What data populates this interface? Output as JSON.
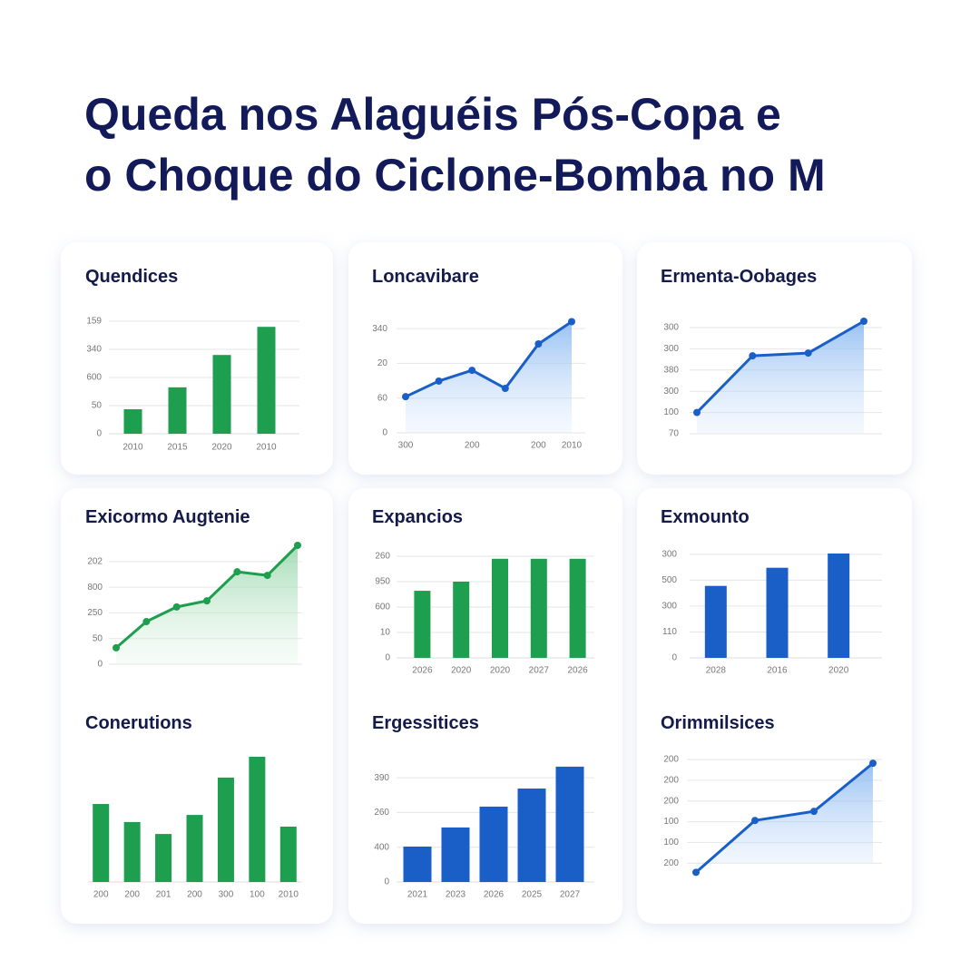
{
  "title": [
    "Queda nos Alaguéis Pós-Copa e",
    "o Choque do Ciclone-Bomba no M"
  ],
  "chart_data": [
    {
      "type": "bar",
      "title": "Quendices",
      "categories": [
        "2010",
        "2015",
        "2020",
        "2010"
      ],
      "values": [
        0.87,
        1.65,
        2.8,
        3.8
      ],
      "color": "#1e9e4f",
      "ylim": [
        0,
        4
      ],
      "yticks": [
        {
          "value": 0,
          "label": "0"
        },
        {
          "value": 1,
          "label": "50"
        },
        {
          "value": 2,
          "label": "600"
        },
        {
          "value": 3,
          "label": "340"
        },
        {
          "value": 4,
          "label": "159"
        }
      ],
      "grid": true
    },
    {
      "type": "line",
      "title": "Loncavibare",
      "categories": [
        "300",
        null,
        "200",
        null,
        "200",
        "2010"
      ],
      "values": [
        1.04,
        1.49,
        1.8,
        1.28,
        2.56,
        3.2
      ],
      "color": "#1a5fc7",
      "area": true,
      "ylim": [
        0,
        3.5
      ],
      "yticks": [
        {
          "value": 0,
          "label": "0"
        },
        {
          "value": 1,
          "label": "60"
        },
        {
          "value": 2,
          "label": "20"
        },
        {
          "value": 3,
          "label": "340"
        }
      ],
      "grid": true
    },
    {
      "type": "line",
      "title": "Ermenta-Oobages",
      "categories": [
        null,
        null,
        null,
        null
      ],
      "values": [
        1.0,
        3.67,
        3.8,
        5.3
      ],
      "color": "#1a5fc7",
      "area": true,
      "ylim": [
        0,
        5.3
      ],
      "yticks": [
        {
          "value": 0,
          "label": "70"
        },
        {
          "value": 1,
          "label": "100"
        },
        {
          "value": 2,
          "label": "300"
        },
        {
          "value": 3,
          "label": "380"
        },
        {
          "value": 4,
          "label": "300"
        },
        {
          "value": 5,
          "label": "300"
        }
      ],
      "grid": true
    },
    {
      "type": "line",
      "title": "Exicormo Augtenie",
      "categories": [
        null,
        null,
        null,
        null,
        null,
        null,
        null
      ],
      "values": [
        0.64,
        1.66,
        2.23,
        2.47,
        3.6,
        3.46,
        4.63
      ],
      "color": "#1e9e4f",
      "area": true,
      "ylim": [
        0,
        4.63
      ],
      "yticks": [
        {
          "value": 0,
          "label": "0"
        },
        {
          "value": 1,
          "label": "50"
        },
        {
          "value": 2,
          "label": "250"
        },
        {
          "value": 3,
          "label": "800"
        },
        {
          "value": 4,
          "label": "202"
        }
      ],
      "grid": true
    },
    {
      "type": "bar",
      "title": "Expancios",
      "categories": [
        "2026",
        "2020",
        "2020",
        "2027",
        "2026"
      ],
      "values": [
        2.64,
        3.0,
        3.9,
        3.9,
        3.9
      ],
      "color": "#1e9e4f",
      "ylim": [
        0,
        4
      ],
      "yticks": [
        {
          "value": 0,
          "label": "0"
        },
        {
          "value": 1,
          "label": "10"
        },
        {
          "value": 2,
          "label": "600"
        },
        {
          "value": 3,
          "label": "950"
        },
        {
          "value": 4,
          "label": "260"
        }
      ],
      "grid": true
    },
    {
      "type": "bar",
      "title": "Exmounto",
      "categories": [
        "2028",
        "2016",
        "2020"
      ],
      "values": [
        2.78,
        3.48,
        4.03
      ],
      "color": "#1a5fc7",
      "ylim": [
        0,
        4.03
      ],
      "yticks": [
        {
          "value": 0,
          "label": "0"
        },
        {
          "value": 1,
          "label": "110"
        },
        {
          "value": 2,
          "label": "300"
        },
        {
          "value": 3,
          "label": "500"
        },
        {
          "value": 4,
          "label": "300"
        }
      ],
      "grid": true
    },
    {
      "type": "bar",
      "title": "Conerutions",
      "categories": [
        "200",
        "200",
        "201",
        "200",
        "300",
        "100",
        "2010"
      ],
      "values": [
        3.07,
        2.36,
        1.89,
        2.64,
        4.11,
        4.93,
        2.18
      ],
      "color": "#1e9e4f",
      "ylim": [
        0,
        5
      ]
    },
    {
      "type": "bar",
      "title": "Ergessitices",
      "categories": [
        "2021",
        "2023",
        "2026",
        "2025",
        "2027"
      ],
      "values": [
        1.02,
        1.57,
        2.17,
        2.69,
        3.32
      ],
      "color": "#1a5fc7",
      "ylim": [
        0,
        3.5
      ],
      "yticks": [
        {
          "value": 0,
          "label": "0"
        },
        {
          "value": 1,
          "label": "400"
        },
        {
          "value": 2,
          "label": "260"
        },
        {
          "value": 3,
          "label": "390"
        }
      ],
      "grid": true
    },
    {
      "type": "line",
      "title": "Orimmilsices",
      "categories": [
        null,
        null,
        null,
        null
      ],
      "values": [
        -0.44,
        2.06,
        2.5,
        4.82
      ],
      "color": "#1a5fc7",
      "area": true,
      "ylim": [
        -0.6,
        5
      ],
      "yticks": [
        {
          "value": 0,
          "label": "200"
        },
        {
          "value": 1,
          "label": "100"
        },
        {
          "value": 2,
          "label": "100"
        },
        {
          "value": 3,
          "label": "200"
        },
        {
          "value": 4,
          "label": "200"
        },
        {
          "value": 5,
          "label": "200"
        }
      ],
      "grid": true
    }
  ]
}
